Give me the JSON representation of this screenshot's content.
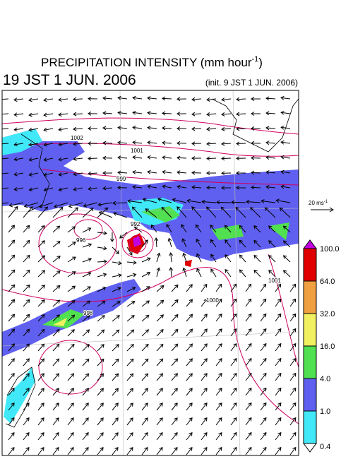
{
  "title": {
    "text": "PRECIPITATION INTENSITY (mm hour",
    "superscript": "-1",
    "close": ")"
  },
  "valid_time": "19 JST 1 JUN. 2006",
  "init_time": "(init. 9 JST 1 JUN. 2006)",
  "wind_scale": {
    "label": "20 ms",
    "superscript": "-1"
  },
  "colorbar": {
    "levels": [
      {
        "value": 100,
        "label": "100.0"
      },
      {
        "value": 64,
        "label": "64.0"
      },
      {
        "value": 32,
        "label": "32.0"
      },
      {
        "value": 16,
        "label": "16.0"
      },
      {
        "value": 4,
        "label": "4.0"
      },
      {
        "value": 1,
        "label": "1.0"
      },
      {
        "value": 0.4,
        "label": "0.4"
      }
    ],
    "colors": [
      "#e00000",
      "#f0a040",
      "#f0f060",
      "#50e050",
      "#6060f0",
      "#40e8f8"
    ],
    "over_color": "#c000e0",
    "under_color": "#ffffff"
  },
  "contour_labels": [
    "1002",
    "1001",
    "999",
    "996",
    "992",
    "998",
    "1000",
    "1001"
  ]
}
